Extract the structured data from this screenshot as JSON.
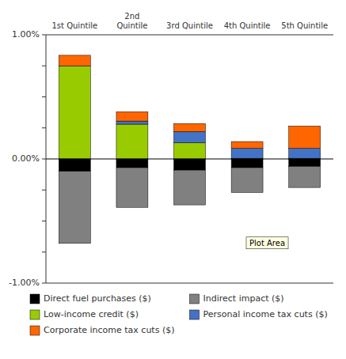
{
  "chart_data": {
    "type": "bar",
    "stacked": true,
    "legend": "bottom",
    "categories": [
      "1st Quintile",
      "2nd\nQuintile",
      "3rd Quintile",
      "4th Quintile",
      "5th Quintile"
    ],
    "series": [
      {
        "name": "Direct fuel purchases ($)",
        "color": "#000000",
        "values": [
          -0.1,
          -0.07,
          -0.09,
          -0.07,
          -0.06
        ]
      },
      {
        "name": "Indirect impact ($)",
        "color": "#808080",
        "values": [
          -0.58,
          -0.32,
          -0.28,
          -0.2,
          -0.17
        ]
      },
      {
        "name": "Low-income credit ($)",
        "color": "#99CC00",
        "values": [
          0.75,
          0.28,
          0.13,
          0.005,
          0.005
        ]
      },
      {
        "name": "Personal income tax cuts ($)",
        "color": "#4472C4",
        "values": [
          0.0,
          0.025,
          0.09,
          0.08,
          0.08
        ]
      },
      {
        "name": "Corporate income tax cuts ($)",
        "color": "#FF6600",
        "values": [
          0.085,
          0.075,
          0.065,
          0.055,
          0.18
        ]
      }
    ],
    "ylim": [
      -1.0,
      1.0
    ],
    "yticks": [
      {
        "value": -1.0,
        "label": "-1.00%"
      },
      {
        "value": -0.75,
        "label": null
      },
      {
        "value": -0.5,
        "label": null
      },
      {
        "value": -0.25,
        "label": null
      },
      {
        "value": 0.0,
        "label": "0.00%"
      },
      {
        "value": 0.25,
        "label": null
      },
      {
        "value": 0.5,
        "label": null
      },
      {
        "value": 0.75,
        "label": null
      },
      {
        "value": 1.0,
        "label": "1.00%"
      }
    ],
    "annotations": [
      {
        "text": "Plot Area",
        "x": 3.35,
        "y": -0.68
      }
    ]
  }
}
